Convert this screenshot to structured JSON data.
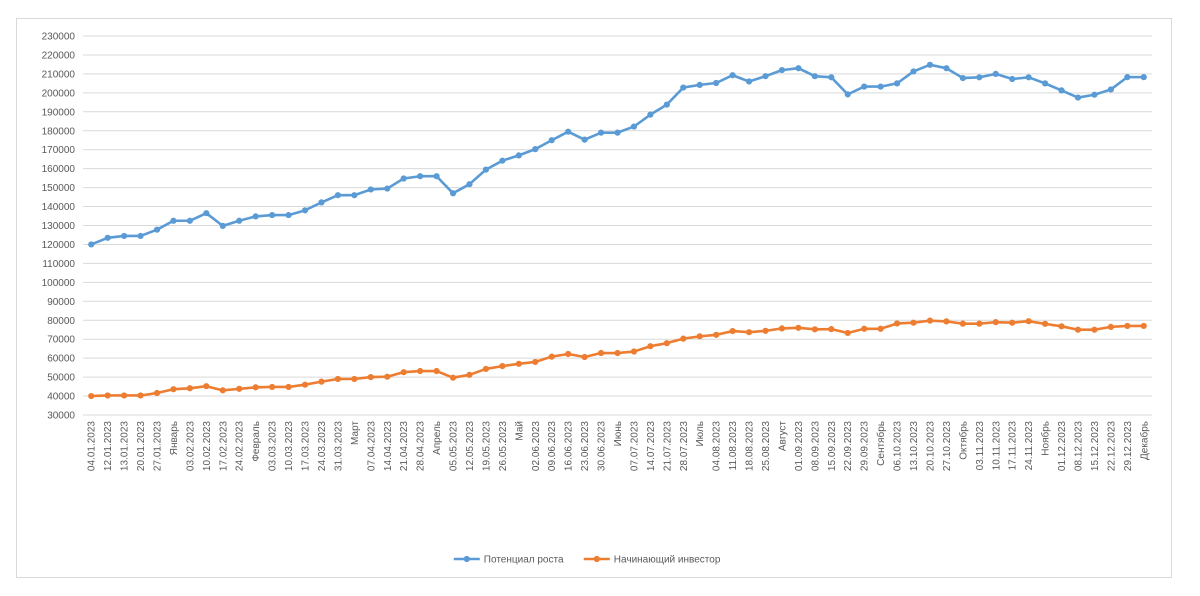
{
  "chart_data": {
    "type": "line",
    "title": "",
    "xlabel": "",
    "ylabel": "",
    "ylim": [
      30000,
      230000
    ],
    "ytick_step": 10000,
    "grid": true,
    "legend_position": "bottom",
    "categories": [
      "04.01.2023",
      "12.01.2023",
      "13.01.2023",
      "20.01.2023",
      "27.01.2023",
      "Январь",
      "03.02.2023",
      "10.02.2023",
      "17.02.2023",
      "24.02.2023",
      "Февраль",
      "03.03.2023",
      "10.03.2023",
      "17.03.2023",
      "24.03.2023",
      "31.03.2023",
      "Март",
      "07.04.2023",
      "14.04.2023",
      "21.04.2023",
      "28.04.2023",
      "Апрель",
      "05.05.2023",
      "12.05.2023",
      "19.05.2023",
      "26.05.2023",
      "Май",
      "02.06.2023",
      "09.06.2023",
      "16.06.2023",
      "23.06.2023",
      "30.06.2023",
      "Июнь",
      "07.07.2023",
      "14.07.2023",
      "21.07.2023",
      "28.07.2023",
      "Июль",
      "04.08.2023",
      "11.08.2023",
      "18.08.2023",
      "25.08.2023",
      "Август",
      "01.09.2023",
      "08.09.2023",
      "15.09.2023",
      "22.09.2023",
      "29.09.2023",
      "Сентябрь",
      "06.10.2023",
      "13.10.2023",
      "20.10.2023",
      "27.10.2023",
      "Октябрь",
      "03.11.2023",
      "10.11.2023",
      "17.11.2023",
      "24.11.2023",
      "Ноябрь",
      "01.12.2023",
      "08.12.2023",
      "15.12.2023",
      "22.12.2023",
      "29.12.2023",
      "Декабрь"
    ],
    "series": [
      {
        "name": "Потенциал роста",
        "color": "#5b9bd5",
        "values": [
          120000,
          123500,
          124500,
          124500,
          127800,
          132500,
          132500,
          136500,
          129800,
          132500,
          134800,
          135500,
          135500,
          138000,
          142200,
          146000,
          146000,
          149000,
          149500,
          154800,
          156000,
          156000,
          147000,
          151800,
          159500,
          164200,
          167000,
          170300,
          175000,
          179500,
          175300,
          179000,
          179000,
          182200,
          188500,
          193800,
          202800,
          204200,
          205200,
          209300,
          206000,
          208800,
          212000,
          213000,
          208800,
          208200,
          199200,
          203300,
          203300,
          205000,
          211300,
          214800,
          213000,
          207800,
          208200,
          210000,
          207300,
          208200,
          205000,
          201300,
          197500,
          199000,
          201800,
          208300,
          208300
        ]
      },
      {
        "name": "Начинающий инвестор",
        "color": "#ed7d31",
        "values": [
          40000,
          40300,
          40300,
          40300,
          41600,
          43600,
          44100,
          45200,
          43000,
          43800,
          44600,
          44800,
          44800,
          46000,
          47600,
          49000,
          49000,
          50000,
          50200,
          52600,
          53200,
          53200,
          49700,
          51200,
          54300,
          55800,
          57000,
          58000,
          60800,
          62200,
          60600,
          62700,
          62700,
          63500,
          66300,
          67900,
          70300,
          71500,
          72300,
          74300,
          73700,
          74400,
          75700,
          76000,
          75200,
          75300,
          73300,
          75500,
          75500,
          78300,
          78700,
          79800,
          79400,
          78200,
          78200,
          79000,
          78700,
          79500,
          78100,
          76800,
          75000,
          75000,
          76500,
          77000,
          77000
        ]
      }
    ]
  }
}
